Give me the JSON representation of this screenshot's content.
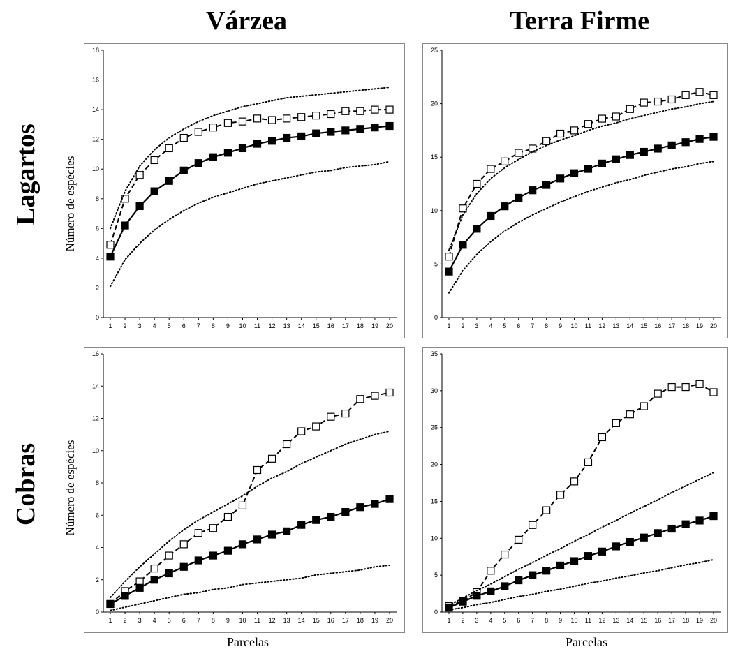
{
  "titles": {
    "col_left": "Várzea",
    "col_right": "Terra Firme",
    "row_top": "Lagartos",
    "row_bottom": "Cobras",
    "ylabel_top": "Número de espécies",
    "ylabel_bottom": "Número de espécies",
    "xlabel_left": "Parcelas",
    "xlabel_right": "Parcelas"
  },
  "chart_data": [
    {
      "type": "line",
      "title": "",
      "x": [
        1,
        2,
        3,
        4,
        5,
        6,
        7,
        8,
        9,
        10,
        11,
        12,
        13,
        14,
        15,
        16,
        17,
        18,
        19,
        20
      ],
      "ylim": [
        0,
        18
      ],
      "yticks": [
        0,
        2,
        4,
        6,
        8,
        10,
        12,
        14,
        16,
        18
      ],
      "ytick_labels": [
        "0",
        "2",
        "4",
        "6",
        "8",
        "10",
        "12",
        "14",
        "16",
        "18"
      ],
      "series": [
        {
          "style": "open-square-dashed",
          "values": [
            4.9,
            8.0,
            9.6,
            10.6,
            11.4,
            12.1,
            12.5,
            12.8,
            13.1,
            13.2,
            13.4,
            13.3,
            13.4,
            13.5,
            13.6,
            13.7,
            13.9,
            13.9,
            14.0,
            14.0
          ]
        },
        {
          "style": "filled-square-solid",
          "values": [
            4.1,
            6.2,
            7.5,
            8.5,
            9.2,
            9.9,
            10.4,
            10.8,
            11.1,
            11.4,
            11.7,
            11.9,
            12.1,
            12.2,
            12.4,
            12.5,
            12.6,
            12.7,
            12.8,
            12.9
          ]
        },
        {
          "style": "dotted-upper",
          "values": [
            6.0,
            8.5,
            10.2,
            11.3,
            12.1,
            12.7,
            13.2,
            13.6,
            13.9,
            14.2,
            14.4,
            14.6,
            14.8,
            14.9,
            15.0,
            15.1,
            15.2,
            15.3,
            15.4,
            15.5
          ]
        },
        {
          "style": "dotted-lower",
          "values": [
            2.1,
            3.9,
            5.0,
            5.9,
            6.6,
            7.2,
            7.7,
            8.1,
            8.4,
            8.7,
            9.0,
            9.2,
            9.4,
            9.6,
            9.8,
            9.9,
            10.1,
            10.2,
            10.3,
            10.5
          ]
        }
      ]
    },
    {
      "type": "line",
      "title": "",
      "x": [
        1,
        2,
        3,
        4,
        5,
        6,
        7,
        8,
        9,
        10,
        11,
        12,
        13,
        14,
        15,
        16,
        17,
        18,
        19,
        20
      ],
      "ylim": [
        0,
        25
      ],
      "yticks": [
        0,
        5,
        10,
        15,
        20,
        25
      ],
      "ytick_labels": [
        "0",
        "5",
        "10",
        "15",
        "20",
        "25"
      ],
      "series": [
        {
          "style": "open-square-dashed",
          "values": [
            5.7,
            10.2,
            12.5,
            13.9,
            14.6,
            15.4,
            15.8,
            16.5,
            17.2,
            17.5,
            18.1,
            18.6,
            18.8,
            19.5,
            20.1,
            20.2,
            20.4,
            20.8,
            21.1,
            20.8
          ]
        },
        {
          "style": "filled-square-solid",
          "values": [
            4.3,
            6.8,
            8.3,
            9.5,
            10.4,
            11.2,
            11.9,
            12.4,
            13.0,
            13.5,
            13.9,
            14.4,
            14.8,
            15.2,
            15.5,
            15.8,
            16.1,
            16.4,
            16.7,
            16.9
          ]
        },
        {
          "style": "dotted-upper",
          "values": [
            6.3,
            9.6,
            11.6,
            13.0,
            14.0,
            14.8,
            15.5,
            16.1,
            16.6,
            17.0,
            17.5,
            17.9,
            18.2,
            18.6,
            18.9,
            19.2,
            19.5,
            19.7,
            20.0,
            20.2
          ]
        },
        {
          "style": "dotted-lower",
          "values": [
            2.3,
            4.4,
            5.9,
            7.1,
            8.1,
            8.9,
            9.6,
            10.2,
            10.8,
            11.3,
            11.8,
            12.2,
            12.6,
            12.9,
            13.3,
            13.6,
            13.9,
            14.1,
            14.4,
            14.6
          ]
        }
      ]
    },
    {
      "type": "line",
      "title": "",
      "x": [
        1,
        2,
        3,
        4,
        5,
        6,
        7,
        8,
        9,
        10,
        11,
        12,
        13,
        14,
        15,
        16,
        17,
        18,
        19,
        20
      ],
      "ylim": [
        0,
        16
      ],
      "yticks": [
        0,
        2,
        4,
        6,
        8,
        10,
        12,
        14,
        16
      ],
      "ytick_labels": [
        "0",
        "2",
        "4",
        "6",
        "8",
        "10",
        "12",
        "14",
        "16"
      ],
      "series": [
        {
          "style": "open-square-dashed",
          "values": [
            0.5,
            1.3,
            1.9,
            2.7,
            3.5,
            4.2,
            4.9,
            5.2,
            5.9,
            6.6,
            8.8,
            9.5,
            10.4,
            11.2,
            11.5,
            12.1,
            12.3,
            13.2,
            13.4,
            13.6
          ]
        },
        {
          "style": "filled-square-solid",
          "values": [
            0.5,
            1.0,
            1.5,
            2.0,
            2.4,
            2.8,
            3.2,
            3.5,
            3.8,
            4.2,
            4.5,
            4.8,
            5.0,
            5.4,
            5.7,
            5.9,
            6.2,
            6.5,
            6.7,
            7.0
          ]
        },
        {
          "style": "dotted-upper",
          "values": [
            0.9,
            1.9,
            2.8,
            3.6,
            4.4,
            5.1,
            5.7,
            6.2,
            6.7,
            7.2,
            7.8,
            8.3,
            8.7,
            9.2,
            9.6,
            10.0,
            10.4,
            10.7,
            11.0,
            11.2
          ]
        },
        {
          "style": "dotted-lower",
          "values": [
            0.1,
            0.3,
            0.5,
            0.7,
            0.9,
            1.1,
            1.2,
            1.4,
            1.5,
            1.7,
            1.8,
            1.9,
            2.0,
            2.1,
            2.3,
            2.4,
            2.5,
            2.6,
            2.8,
            2.9
          ]
        }
      ]
    },
    {
      "type": "line",
      "title": "",
      "x": [
        1,
        2,
        3,
        4,
        5,
        6,
        7,
        8,
        9,
        10,
        11,
        12,
        13,
        14,
        15,
        16,
        17,
        18,
        19,
        20
      ],
      "ylim": [
        0,
        35
      ],
      "yticks": [
        0,
        5,
        10,
        15,
        20,
        25,
        30,
        35
      ],
      "ytick_labels": [
        "0",
        "5",
        "10",
        "15",
        "20",
        "25",
        "30",
        "35"
      ],
      "series": [
        {
          "style": "open-square-dashed",
          "values": [
            0.8,
            1.5,
            2.7,
            5.6,
            7.8,
            9.8,
            11.8,
            13.8,
            15.9,
            17.7,
            20.3,
            23.7,
            25.6,
            26.8,
            27.9,
            29.6,
            30.5,
            30.5,
            30.9,
            29.8
          ]
        },
        {
          "style": "filled-square-solid",
          "values": [
            0.6,
            1.4,
            2.2,
            2.8,
            3.5,
            4.3,
            5.0,
            5.6,
            6.3,
            6.9,
            7.6,
            8.2,
            8.9,
            9.5,
            10.1,
            10.7,
            11.3,
            11.9,
            12.4,
            13.0
          ]
        },
        {
          "style": "dotted-upper",
          "values": [
            0.9,
            1.9,
            2.9,
            3.8,
            4.8,
            5.8,
            6.7,
            7.7,
            8.6,
            9.6,
            10.5,
            11.5,
            12.4,
            13.4,
            14.3,
            15.2,
            16.2,
            17.1,
            18.0,
            18.9
          ]
        },
        {
          "style": "dotted-lower",
          "values": [
            0.3,
            0.6,
            1.0,
            1.3,
            1.7,
            2.1,
            2.4,
            2.8,
            3.1,
            3.5,
            3.9,
            4.2,
            4.6,
            4.9,
            5.3,
            5.6,
            6.0,
            6.4,
            6.7,
            7.1
          ]
        }
      ]
    }
  ]
}
